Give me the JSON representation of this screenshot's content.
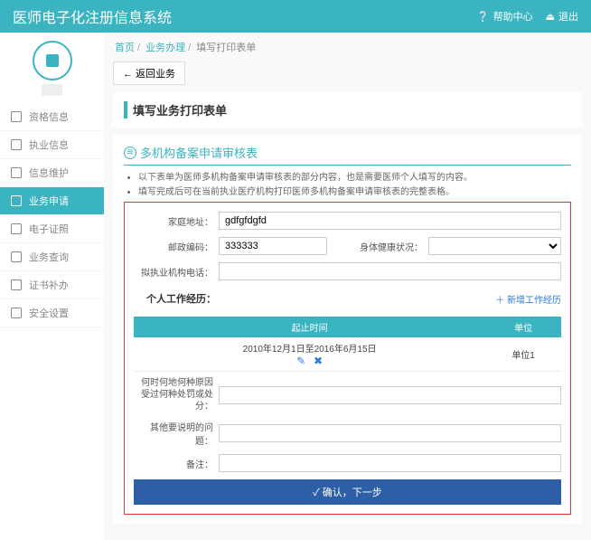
{
  "header": {
    "title": "医师电子化注册信息系统",
    "help": "帮助中心",
    "logout": "退出"
  },
  "breadcrumb": {
    "home": "首页",
    "biz": "业务办理",
    "last": "填写打印表单"
  },
  "back_btn": "←  返回业务",
  "panel1_title": "填写业务打印表单",
  "subtitle": "多机构备案申请审核表",
  "desc1": "以下表单为医师多机构备案申请审核表的部分内容，也是需要医师个人填写的内容。",
  "desc2": "填写完成后可在当前执业医疗机构打印医师多机构备案申请审核表的完整表格。",
  "nav": [
    {
      "label": "资格信息"
    },
    {
      "label": "执业信息"
    },
    {
      "label": "信息维护"
    },
    {
      "label": "业务申请",
      "active": true
    },
    {
      "label": "电子证照"
    },
    {
      "label": "业务查询"
    },
    {
      "label": "证书补办"
    },
    {
      "label": "安全设置"
    }
  ],
  "form": {
    "addr_label": "家庭地址：",
    "addr_val": "gdfgfdgfd",
    "zip_label": "邮政编码：",
    "zip_val": "333333",
    "health_label": "身体健康状况：",
    "phone_label": "拟执业机构电话：",
    "work_section": "个人工作经历：",
    "add_work": "＋ 新增工作经历",
    "col_time": "起止时间",
    "col_unit": "单位",
    "row_time": "2010年12月1日至2016年6月15日",
    "row_unit": "单位1",
    "punish_label": "何时何地何种原因受过何种处罚或处分：",
    "other_label": "其他要说明的问题：",
    "remark_label": "备注：",
    "submit": "✓  确认，下一步"
  },
  "colors": {
    "brand": "#3bb4c1",
    "border_red": "#e33",
    "submit": "#2d5fa6",
    "link": "#2d7ad6"
  }
}
